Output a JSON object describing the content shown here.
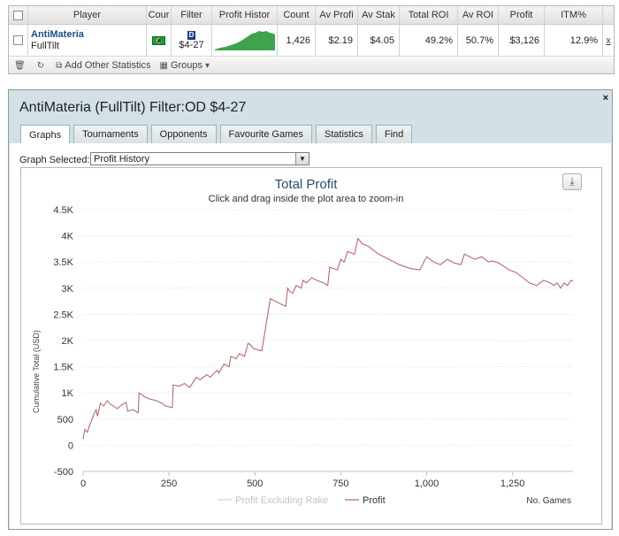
{
  "grid": {
    "headers": [
      "Player",
      "Cour",
      "Filter",
      "Profit Histor",
      "Count",
      "Av Profi",
      "Av Stak",
      "Total ROI",
      "Av ROI",
      "Profit",
      "ITM%"
    ],
    "row": {
      "player_name": "AntiMateria",
      "site": "FullTilt",
      "filter_icon": "D",
      "filter_text": "$4-27",
      "count": "1,426",
      "av_profit": "$2.19",
      "av_stake": "$4.05",
      "total_roi": "49.2%",
      "av_roi": "50.7%",
      "profit": "$3,126",
      "itm": "12.9%",
      "remove": "x"
    },
    "footer": {
      "add_stats": "Add Other Statistics",
      "groups": "Groups"
    }
  },
  "panel": {
    "title": "AntiMateria (FullTilt) Filter:OD $4-27",
    "close": "×",
    "tabs": [
      "Graphs",
      "Tournaments",
      "Opponents",
      "Favourite Games",
      "Statistics",
      "Find"
    ],
    "active_tab": "Graphs",
    "graph_selected_label": "Graph Selected:",
    "graph_selected_value": "Profit History"
  },
  "colors": {
    "profit_line": "#b86a6a",
    "sparkline": "#3fa34d",
    "grid_line": "#dddddd"
  },
  "chart_data": {
    "type": "line",
    "title": "Total Profit",
    "subtitle": "Click and drag inside the plot area to zoom-in",
    "ylabel": "Cumulative Total (USD)",
    "xlabel": "No. Games",
    "xlim": [
      0,
      1426
    ],
    "ylim": [
      -500,
      4500
    ],
    "x_ticks": [
      0,
      250,
      500,
      750,
      1000,
      1250
    ],
    "x_tick_labels": [
      "0",
      "250",
      "500",
      "750",
      "1,000",
      "1,250"
    ],
    "y_ticks": [
      -500,
      0,
      500,
      1000,
      1500,
      2000,
      2500,
      3000,
      3500,
      4000,
      4500
    ],
    "y_tick_labels": [
      "-500",
      "0",
      "500",
      "1K",
      "1.5K",
      "2K",
      "2.5K",
      "3K",
      "3.5K",
      "4K",
      "4.5K"
    ],
    "legend": [
      "Profit Excluding Rake",
      "Profit"
    ],
    "series": [
      {
        "name": "Profit",
        "x": [
          0,
          5,
          12,
          20,
          25,
          32,
          38,
          42,
          50,
          60,
          70,
          80,
          95,
          100,
          110,
          125,
          130,
          145,
          160,
          163,
          180,
          195,
          210,
          230,
          240,
          260,
          262,
          280,
          295,
          310,
          330,
          340,
          360,
          370,
          390,
          395,
          410,
          425,
          430,
          445,
          455,
          470,
          480,
          490,
          495,
          520,
          525,
          545,
          560,
          575,
          590,
          595,
          600,
          610,
          620,
          635,
          640,
          650,
          665,
          680,
          700,
          712,
          718,
          740,
          750,
          760,
          770,
          790,
          800,
          812,
          830,
          860,
          890,
          920,
          950,
          980,
          1000,
          1010,
          1020,
          1040,
          1060,
          1080,
          1100,
          1110,
          1125,
          1140,
          1160,
          1180,
          1190,
          1210,
          1240,
          1260,
          1280,
          1300,
          1320,
          1340,
          1360,
          1370,
          1380,
          1390,
          1400,
          1410,
          1420,
          1426
        ],
        "y": [
          120,
          300,
          250,
          400,
          480,
          600,
          680,
          550,
          800,
          750,
          850,
          780,
          720,
          700,
          760,
          820,
          650,
          680,
          620,
          1000,
          920,
          880,
          860,
          800,
          750,
          720,
          1150,
          1130,
          1180,
          1100,
          1300,
          1250,
          1350,
          1300,
          1430,
          1380,
          1550,
          1500,
          1700,
          1650,
          1750,
          1700,
          1950,
          1900,
          1850,
          1800,
          2000,
          2800,
          2750,
          2700,
          2650,
          3000,
          2950,
          2900,
          3050,
          3000,
          3150,
          3100,
          3200,
          3150,
          3100,
          3050,
          3400,
          3350,
          3550,
          3500,
          3700,
          3650,
          3950,
          3850,
          3800,
          3650,
          3550,
          3450,
          3380,
          3350,
          3600,
          3550,
          3500,
          3450,
          3550,
          3480,
          3450,
          3650,
          3600,
          3550,
          3600,
          3500,
          3520,
          3480,
          3350,
          3300,
          3200,
          3100,
          3050,
          3150,
          3100,
          3050,
          3100,
          3000,
          3100,
          3050,
          3150,
          3130
        ]
      }
    ],
    "grid": true,
    "legend_position": "bottom"
  }
}
